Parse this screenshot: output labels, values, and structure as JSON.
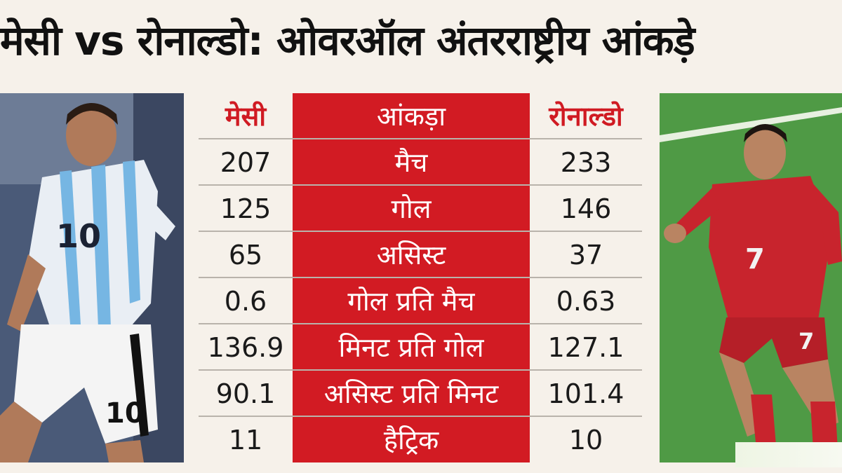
{
  "title": "मेसी vs रोनाल्डो: ओवरऑल अंतरराष्ट्रीय आंकड़े",
  "colors": {
    "accent_red": "#d21b23",
    "header_red_text": "#d01a22",
    "background": "#f6f1ea"
  },
  "table": {
    "header": {
      "left": "मेसी",
      "middle": "आंकड़ा",
      "right": "रोनाल्डो"
    },
    "rows": [
      {
        "left": "207",
        "stat": "मैच",
        "right": "233"
      },
      {
        "left": "125",
        "stat": "गोल",
        "right": "146"
      },
      {
        "left": "65",
        "stat": "असिस्ट",
        "right": "37"
      },
      {
        "left": "0.6",
        "stat": "गोल प्रति मैच",
        "right": "0.63"
      },
      {
        "left": "136.9",
        "stat": "मिनट प्रति गोल",
        "right": "127.1"
      },
      {
        "left": "90.1",
        "stat": "असिस्ट प्रति मिनट",
        "right": "101.4"
      },
      {
        "left": "11",
        "stat": "हैट्रिक",
        "right": "10"
      }
    ]
  },
  "left_photo": {
    "jersey_number": "10"
  },
  "right_photo": {
    "jersey_number": "7"
  }
}
